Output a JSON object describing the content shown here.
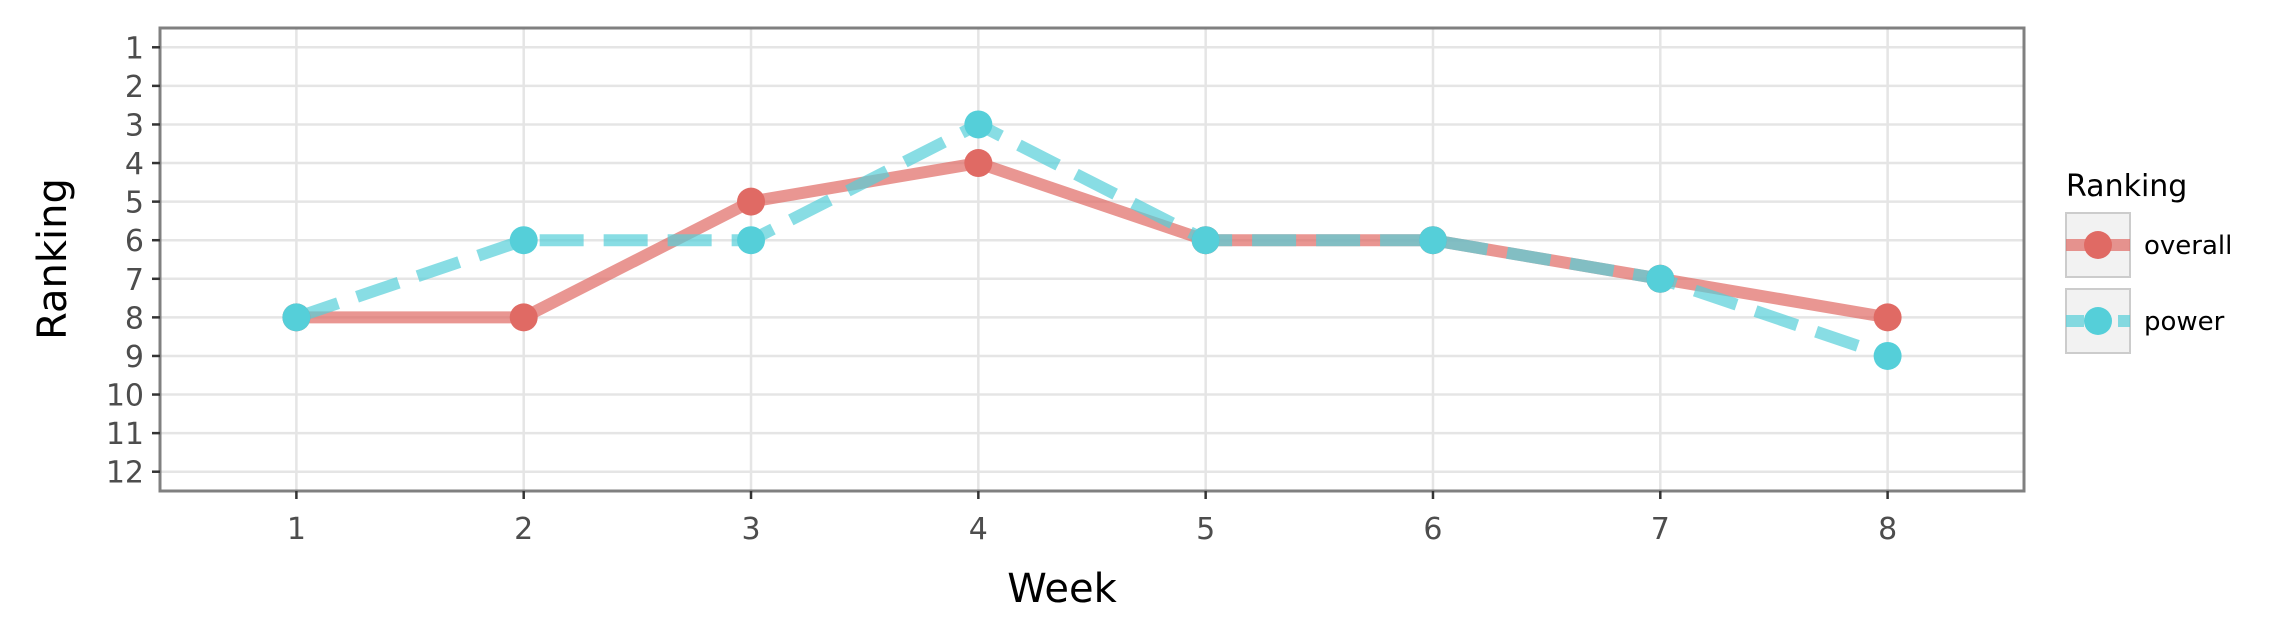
{
  "chart_data": {
    "type": "line",
    "xlabel": "Week",
    "ylabel": "Ranking",
    "x": [
      1,
      2,
      3,
      4,
      5,
      6,
      7,
      8
    ],
    "xlim": [
      0.4,
      8.6
    ],
    "ylim": [
      12.5,
      0.5
    ],
    "y_reversed": true,
    "x_ticks": [
      1,
      2,
      3,
      4,
      5,
      6,
      7,
      8
    ],
    "y_ticks": [
      1,
      2,
      3,
      4,
      5,
      6,
      7,
      8,
      9,
      10,
      11,
      12
    ],
    "grid": true,
    "legend": {
      "title": "Ranking",
      "position": "right"
    },
    "series": [
      {
        "name": "overall",
        "values": [
          8,
          8,
          5,
          4,
          6,
          6,
          7,
          8
        ],
        "color": "#e06a64",
        "linestyle": "solid"
      },
      {
        "name": "power",
        "values": [
          8,
          6,
          6,
          3,
          6,
          6,
          7,
          9
        ],
        "color": "#55cfd9",
        "linestyle": "dashed"
      }
    ]
  }
}
